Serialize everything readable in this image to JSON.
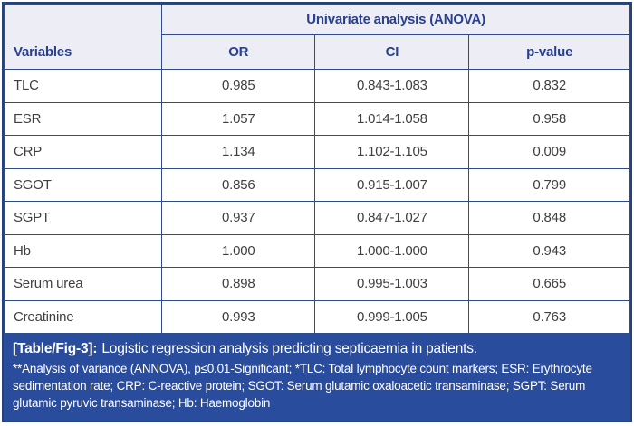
{
  "table": {
    "group_header": "Univariate analysis (ANOVA)",
    "headers": {
      "variables": "Variables",
      "or": "OR",
      "ci": "CI",
      "p": "p-value"
    },
    "rows": [
      {
        "variable": "TLC",
        "or": "0.985",
        "ci": "0.843-1.083",
        "p": "0.832"
      },
      {
        "variable": "ESR",
        "or": "1.057",
        "ci": "1.014-1.058",
        "p": "0.958"
      },
      {
        "variable": "CRP",
        "or": "1.134",
        "ci": "1.102-1.105",
        "p": "0.009"
      },
      {
        "variable": "SGOT",
        "or": "0.856",
        "ci": "0.915-1.007",
        "p": "0.799"
      },
      {
        "variable": "SGPT",
        "or": "0.937",
        "ci": "0.847-1.027",
        "p": "0.848"
      },
      {
        "variable": "Hb",
        "or": "1.000",
        "ci": "1.000-1.000",
        "p": "0.943"
      },
      {
        "variable": "Serum urea",
        "or": "0.898",
        "ci": "0.995-1.003",
        "p": "0.665"
      },
      {
        "variable": "Creatinine",
        "or": "0.993",
        "ci": "0.999-1.005",
        "p": "0.763"
      }
    ]
  },
  "caption": {
    "label": "[Table/Fig-3]:",
    "title": "Logistic regression analysis predicting septicaemia in patients.",
    "footnote": "**Analysis of variance (ANNOVA), p≤0.01-Significant; *TLC: Total lymphocyte count markers; ESR: Erythrocyte sedimentation rate; CRP: C-reactive protein; SGOT: Serum glutamic oxaloacetic transaminase; SGPT: Serum glutamic pyruvic transaminase; Hb: Haemoglobin"
  },
  "colors": {
    "frame_border": "#26427c",
    "grid_line": "#2e4c85",
    "header_bg": "#ecedf5",
    "header_text": "#28408f",
    "body_text": "#3f3f3f",
    "caption_bg": "#2a4c9c",
    "caption_text": "#ffffff"
  }
}
